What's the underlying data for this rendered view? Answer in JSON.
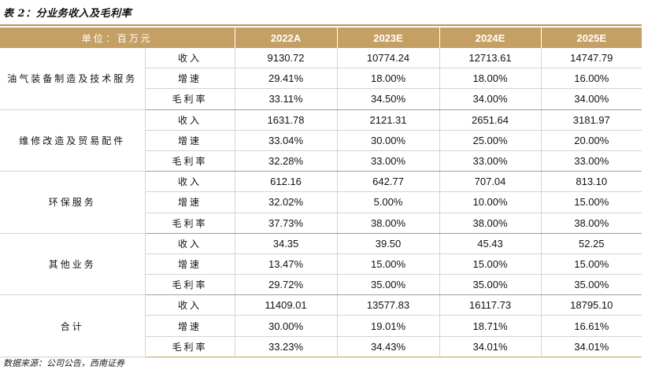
{
  "title": "表 2：分业务收入及毛利率",
  "header": {
    "unit": "单位：百万元",
    "years": [
      "2022A",
      "2023E",
      "2024E",
      "2025E"
    ]
  },
  "groups": [
    {
      "name": "油气装备制造及技术服务",
      "rows": [
        {
          "metric": "收入",
          "values": [
            "9130.72",
            "10774.24",
            "12713.61",
            "14747.79"
          ]
        },
        {
          "metric": "增速",
          "values": [
            "29.41%",
            "18.00%",
            "18.00%",
            "16.00%"
          ]
        },
        {
          "metric": "毛利率",
          "values": [
            "33.11%",
            "34.50%",
            "34.00%",
            "34.00%"
          ]
        }
      ]
    },
    {
      "name": "维修改造及贸易配件",
      "rows": [
        {
          "metric": "收入",
          "values": [
            "1631.78",
            "2121.31",
            "2651.64",
            "3181.97"
          ]
        },
        {
          "metric": "增速",
          "values": [
            "33.04%",
            "30.00%",
            "25.00%",
            "20.00%"
          ]
        },
        {
          "metric": "毛利率",
          "values": [
            "32.28%",
            "33.00%",
            "33.00%",
            "33.00%"
          ]
        }
      ]
    },
    {
      "name": "环保服务",
      "rows": [
        {
          "metric": "收入",
          "values": [
            "612.16",
            "642.77",
            "707.04",
            "813.10"
          ]
        },
        {
          "metric": "增速",
          "values": [
            "32.02%",
            "5.00%",
            "10.00%",
            "15.00%"
          ]
        },
        {
          "metric": "毛利率",
          "values": [
            "37.73%",
            "38.00%",
            "38.00%",
            "38.00%"
          ]
        }
      ]
    },
    {
      "name": "其他业务",
      "rows": [
        {
          "metric": "收入",
          "values": [
            "34.35",
            "39.50",
            "45.43",
            "52.25"
          ]
        },
        {
          "metric": "增速",
          "values": [
            "13.47%",
            "15.00%",
            "15.00%",
            "15.00%"
          ]
        },
        {
          "metric": "毛利率",
          "values": [
            "29.72%",
            "35.00%",
            "35.00%",
            "35.00%"
          ]
        }
      ]
    },
    {
      "name": "合计",
      "rows": [
        {
          "metric": "收入",
          "values": [
            "11409.01",
            "13577.83",
            "16117.73",
            "18795.10"
          ]
        },
        {
          "metric": "增速",
          "values": [
            "30.00%",
            "19.01%",
            "18.71%",
            "16.61%"
          ]
        },
        {
          "metric": "毛利率",
          "values": [
            "33.23%",
            "34.43%",
            "34.01%",
            "34.01%"
          ]
        }
      ]
    }
  ],
  "source": "数据来源：公司公告，西南证券"
}
